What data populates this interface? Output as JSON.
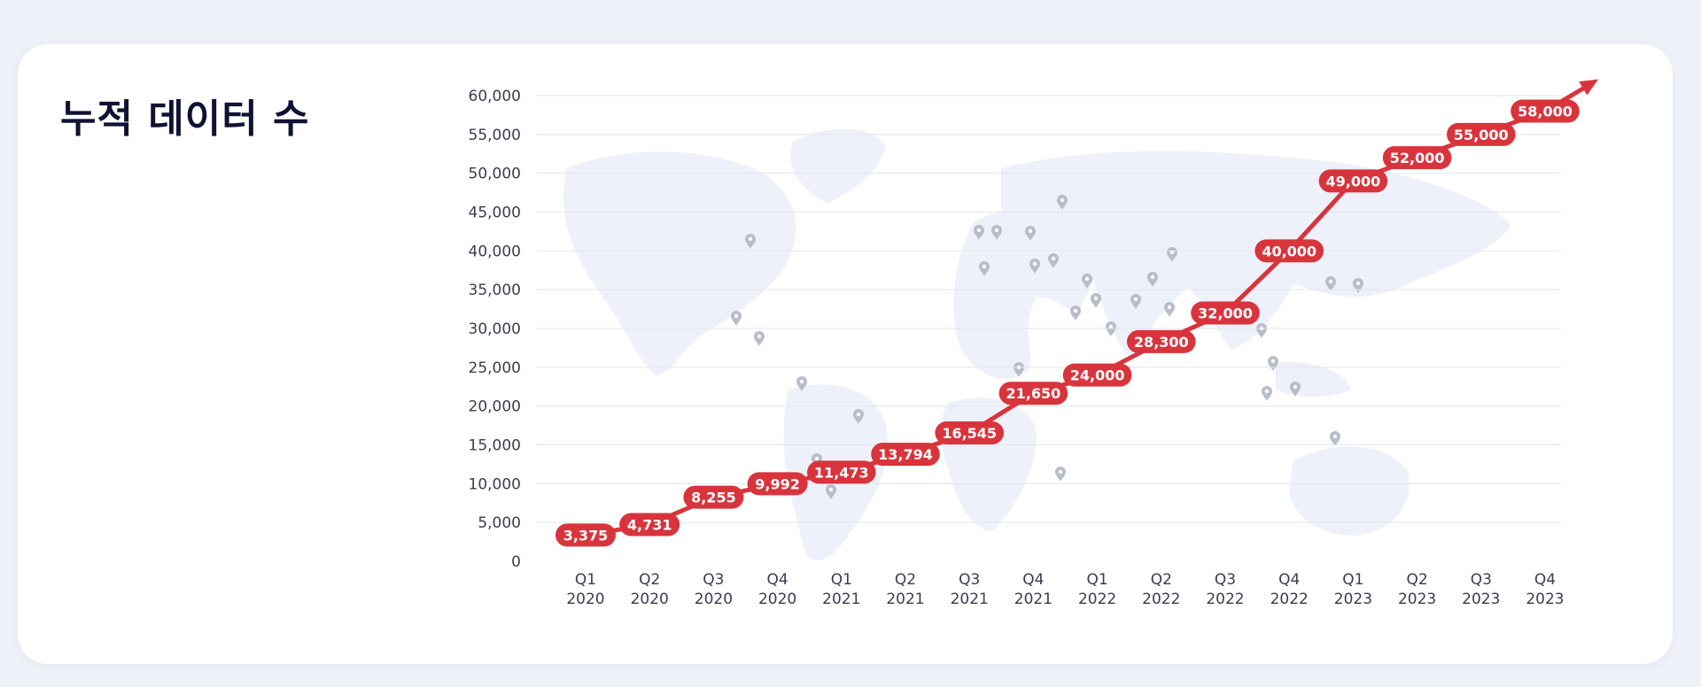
{
  "page": {
    "title": "누적 데이터 수"
  },
  "colors": {
    "background": "#eef1f8",
    "card": "#ffffff",
    "title": "#101233",
    "accent": "#d9343c",
    "grid": "#e3e6ef",
    "map": "#eef1fa",
    "pin": "#b9bdc9"
  },
  "chart_data": {
    "type": "line",
    "title": "누적 데이터 수",
    "xlabel": "",
    "ylabel": "",
    "ylim": [
      0,
      60000
    ],
    "yticks": [
      "0",
      "5,000",
      "10,000",
      "15,000",
      "20,000",
      "25,000",
      "30,000",
      "35,000",
      "40,000",
      "45,000",
      "50,000",
      "55,000",
      "60,000"
    ],
    "categories": [
      {
        "q": "Q1",
        "y": "2020"
      },
      {
        "q": "Q2",
        "y": "2020"
      },
      {
        "q": "Q3",
        "y": "2020"
      },
      {
        "q": "Q4",
        "y": "2020"
      },
      {
        "q": "Q1",
        "y": "2021"
      },
      {
        "q": "Q2",
        "y": "2021"
      },
      {
        "q": "Q3",
        "y": "2021"
      },
      {
        "q": "Q4",
        "y": "2021"
      },
      {
        "q": "Q1",
        "y": "2022"
      },
      {
        "q": "Q2",
        "y": "2022"
      },
      {
        "q": "Q3",
        "y": "2022"
      },
      {
        "q": "Q4",
        "y": "2022"
      },
      {
        "q": "Q1",
        "y": "2023"
      },
      {
        "q": "Q2",
        "y": "2023"
      },
      {
        "q": "Q3",
        "y": "2023"
      },
      {
        "q": "Q4",
        "y": "2023"
      }
    ],
    "values": [
      3375,
      4731,
      8255,
      9992,
      11473,
      13794,
      16545,
      21650,
      24000,
      28300,
      32000,
      40000,
      49000,
      52000,
      55000,
      58000
    ],
    "labels": [
      "3,375",
      "4,731",
      "8,255",
      "9,992",
      "11,473",
      "13,794",
      "16,545",
      "21,650",
      "24,000",
      "28,300",
      "32,000",
      "40,000",
      "49,000",
      "52,000",
      "55,000",
      "58,000"
    ],
    "grid": true,
    "legend": "none",
    "background": "world-map-with-location-pins"
  }
}
